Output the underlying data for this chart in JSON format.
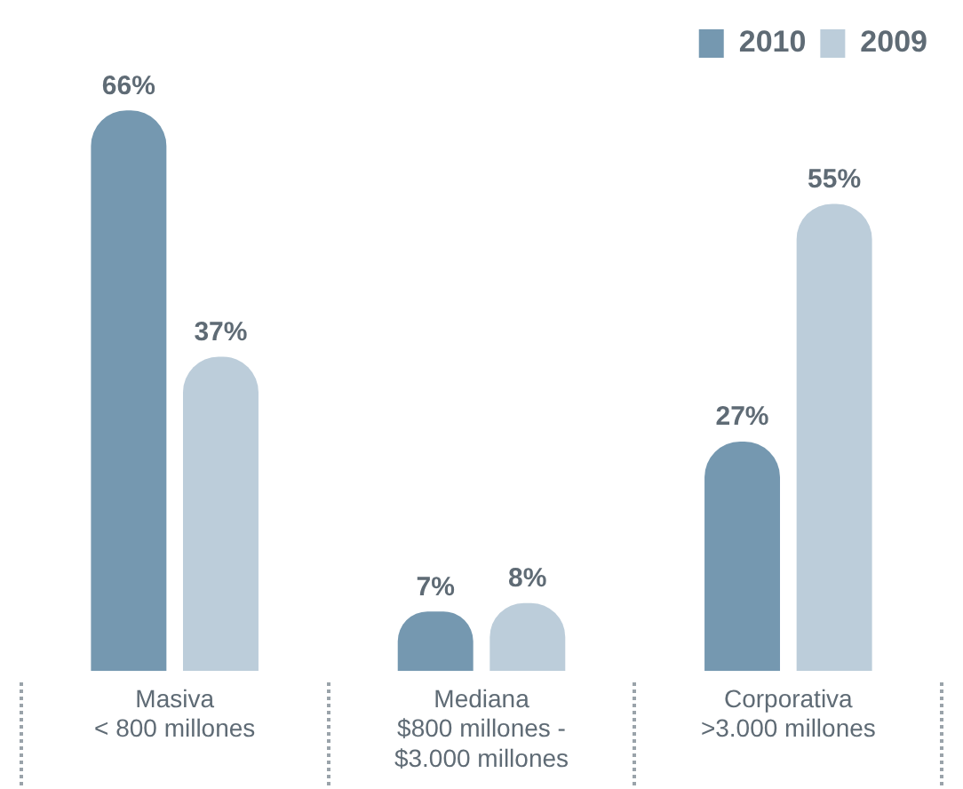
{
  "chart_data": {
    "type": "bar",
    "categories": [
      "Masiva\n< 800 millones",
      "Mediana\n$800 millones -\n$3.000 millones",
      "Corporativa\n>3.000 millones"
    ],
    "series": [
      {
        "name": "2010",
        "color": "#7598b0",
        "values": [
          66,
          7,
          27
        ],
        "value_labels": [
          "66%",
          "7%",
          "27%"
        ]
      },
      {
        "name": "2009",
        "color": "#bccdda",
        "values": [
          37,
          8,
          55
        ],
        "value_labels": [
          "37%",
          "8%",
          "55%"
        ]
      }
    ],
    "legend": "top right",
    "grid": false
  }
}
